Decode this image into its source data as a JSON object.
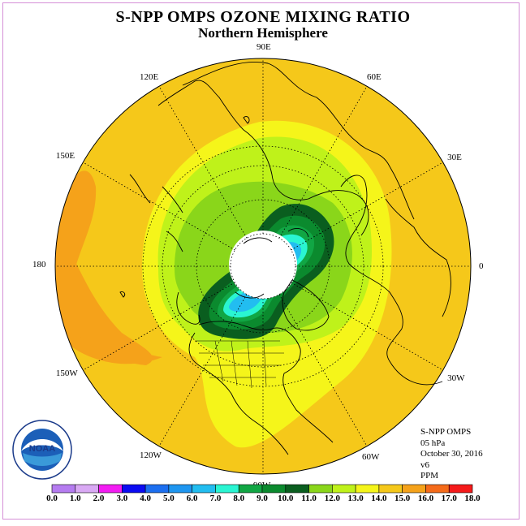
{
  "title": "S-NPP OMPS OZONE MIXING RATIO",
  "subtitle": "Northern Hemisphere",
  "map": {
    "projection": "north polar stereographic",
    "longitude_labels": [
      {
        "key": "lon-90e",
        "text": "90E",
        "lon": 90
      },
      {
        "key": "lon-60e",
        "text": "60E",
        "lon": 60
      },
      {
        "key": "lon-30e",
        "text": "30E",
        "lon": 30
      },
      {
        "key": "lon-0",
        "text": "0",
        "lon": 0
      },
      {
        "key": "lon-30w",
        "text": "30W",
        "lon": -30
      },
      {
        "key": "lon-60w",
        "text": "60W",
        "lon": -60
      },
      {
        "key": "lon-90w",
        "text": "90W",
        "lon": -90
      },
      {
        "key": "lon-120w",
        "text": "120W",
        "lon": -120
      },
      {
        "key": "lon-150w",
        "text": "150W",
        "lon": -150
      },
      {
        "key": "lon-180",
        "text": "180",
        "lon": 180
      },
      {
        "key": "lon-150e",
        "text": "150E",
        "lon": 150
      },
      {
        "key": "lon-120e",
        "text": "120E",
        "lon": 120
      }
    ],
    "polar_no_data": true
  },
  "info": {
    "instrument": "S-NPP OMPS",
    "level": "05 hPa",
    "date": "October 30, 2016",
    "version": "v6",
    "units": "PPM"
  },
  "colorbar": {
    "ticks": [
      "0.0",
      "1.0",
      "2.0",
      "3.0",
      "4.0",
      "5.0",
      "6.0",
      "7.0",
      "8.0",
      "9.0",
      "10.0",
      "11.0",
      "12.0",
      "13.0",
      "14.0",
      "15.0",
      "16.0",
      "17.0",
      "18.0"
    ],
    "colors": [
      "#b57cf0",
      "#d9a9f4",
      "#f31cf3",
      "#0b0bf2",
      "#1c6ff0",
      "#1e96f0",
      "#22bdf0",
      "#2af5d2",
      "#11a644",
      "#0b8a2e",
      "#0a5e1f",
      "#8ad61a",
      "#bff21a",
      "#f5f51a",
      "#f5c81a",
      "#f5a21a",
      "#f56b1a",
      "#f51a1a",
      "#9a5a2e"
    ]
  },
  "logo": {
    "text": "NOAA"
  }
}
